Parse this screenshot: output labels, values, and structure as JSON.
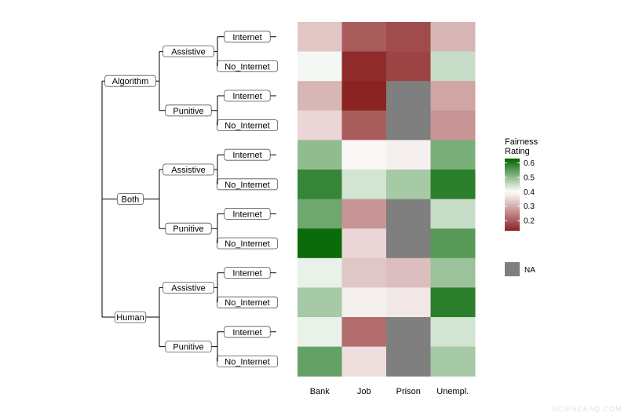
{
  "chart_data": {
    "type": "heatmap",
    "columns": [
      "Bank",
      "Job",
      "Prison",
      "Unempl."
    ],
    "rows": [
      {
        "group": "Algorithm",
        "type": "Assistive",
        "info": "Internet",
        "values": [
          0.33,
          0.2,
          0.18,
          0.31
        ]
      },
      {
        "group": "Algorithm",
        "type": "Assistive",
        "info": "No_Internet",
        "values": [
          0.41,
          0.14,
          0.17,
          0.45
        ]
      },
      {
        "group": "Algorithm",
        "type": "Punitive",
        "info": "Internet",
        "values": [
          0.31,
          0.13,
          null,
          0.29
        ]
      },
      {
        "group": "Algorithm",
        "type": "Punitive",
        "info": "No_Internet",
        "values": [
          0.35,
          0.2,
          null,
          0.27
        ]
      },
      {
        "group": "Both",
        "type": "Assistive",
        "info": "Internet",
        "values": [
          0.5,
          0.39,
          0.38,
          0.52
        ]
      },
      {
        "group": "Both",
        "type": "Assistive",
        "info": "No_Internet",
        "values": [
          0.58,
          0.44,
          0.48,
          0.59
        ]
      },
      {
        "group": "Both",
        "type": "Punitive",
        "info": "Internet",
        "values": [
          0.53,
          0.27,
          null,
          0.45
        ]
      },
      {
        "group": "Both",
        "type": "Punitive",
        "info": "No_Internet",
        "values": [
          0.62,
          0.35,
          null,
          0.55
        ]
      },
      {
        "group": "Human",
        "type": "Assistive",
        "info": "Internet",
        "values": [
          0.42,
          0.33,
          0.32,
          0.49
        ]
      },
      {
        "group": "Human",
        "type": "Assistive",
        "info": "No_Internet",
        "values": [
          0.48,
          0.38,
          0.37,
          0.59
        ]
      },
      {
        "group": "Human",
        "type": "Punitive",
        "info": "Internet",
        "values": [
          0.42,
          0.22,
          null,
          0.44
        ]
      },
      {
        "group": "Human",
        "type": "Punitive",
        "info": "No_Internet",
        "values": [
          0.54,
          0.36,
          null,
          0.48
        ]
      }
    ],
    "groups": [
      "Algorithm",
      "Both",
      "Human"
    ],
    "types": [
      "Assistive",
      "Punitive"
    ],
    "infos": [
      "Internet",
      "No_Internet"
    ],
    "legend": {
      "title_lines": [
        "Fairness",
        "Rating"
      ],
      "ticks": [
        0.6,
        0.5,
        0.4,
        0.3,
        0.2
      ],
      "range": [
        0.13,
        0.63
      ],
      "midpoint": 0.4,
      "na_label": "NA",
      "position": "right"
    },
    "colors": {
      "low": "#8b2323",
      "mid": "#ffffff",
      "high": "#006400",
      "na": "#7f7f7f"
    }
  },
  "watermark": "SCIENCEAQ.COM"
}
